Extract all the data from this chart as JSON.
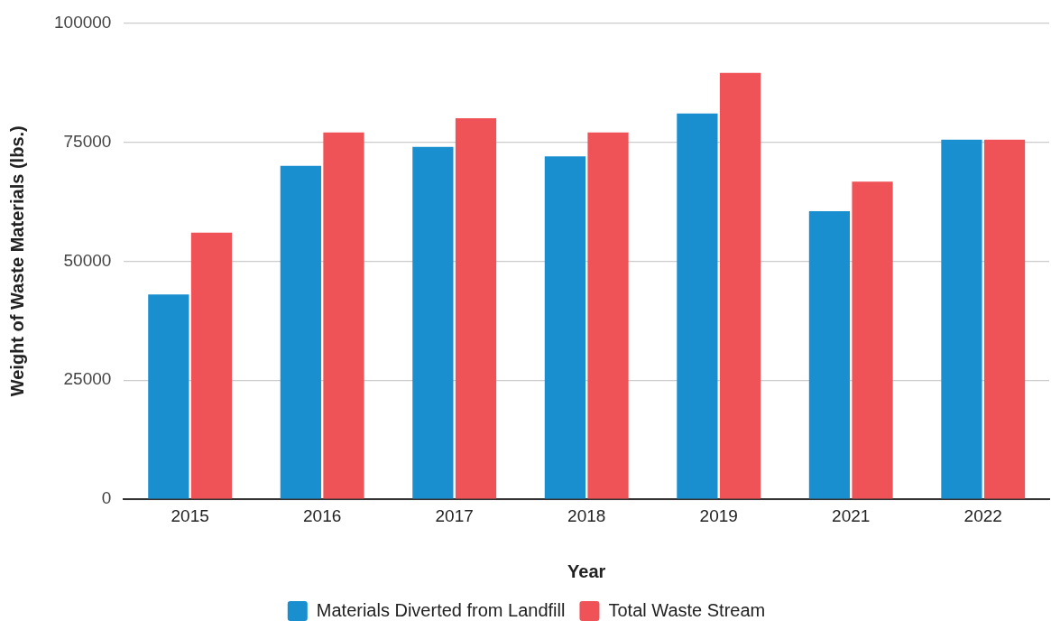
{
  "chart_data": {
    "type": "bar",
    "xlabel": "Year",
    "ylabel": "Weight of Waste Materials (lbs.)",
    "categories": [
      "2015",
      "2016",
      "2017",
      "2018",
      "2019",
      "2021",
      "2022"
    ],
    "series": [
      {
        "name": "Materials Diverted from Landfill",
        "color": "#1a8fcf",
        "values": [
          43000,
          70000,
          74000,
          72000,
          81000,
          60500,
          75500
        ]
      },
      {
        "name": "Total Waste Stream",
        "color": "#ef5358",
        "values": [
          56000,
          77000,
          80000,
          77000,
          89500,
          66700,
          75500
        ]
      }
    ],
    "ylim": [
      0,
      100000
    ],
    "yticks": [
      0,
      25000,
      50000,
      75000,
      100000
    ],
    "grid": "y",
    "legend": "bottom"
  }
}
